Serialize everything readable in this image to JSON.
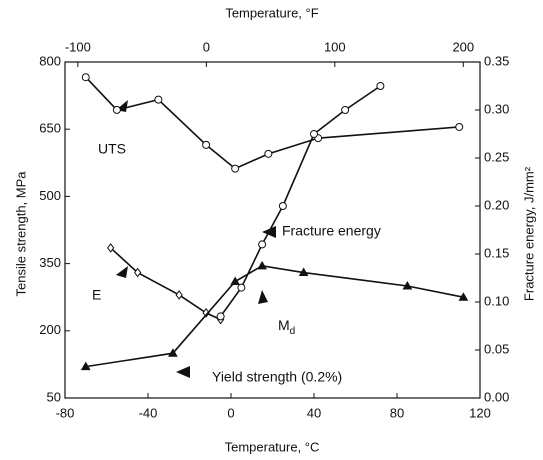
{
  "chart_data": {
    "type": "line",
    "xlabel": "Temperature, °C",
    "x2label": "Temperature, °F",
    "ylabel": "Tensile strength, MPa",
    "y2label": "Fracture energy, J/mm²",
    "xlim": [
      -80,
      120
    ],
    "xticks": [
      -80,
      -40,
      0,
      40,
      80,
      120
    ],
    "x2lim": [
      -110,
      213
    ],
    "x2ticks": [
      -100,
      0,
      100,
      200
    ],
    "ylim": [
      50,
      800
    ],
    "yticks": [
      50,
      200,
      350,
      500,
      650,
      800
    ],
    "y2lim": [
      0,
      0.35
    ],
    "y2ticks": [
      {
        "value": 0,
        "label": "0.00"
      },
      {
        "value": 0.05,
        "label": "0.05"
      },
      {
        "value": 0.1,
        "label": "0.10"
      },
      {
        "value": 0.15,
        "label": "0.15"
      },
      {
        "value": 0.2,
        "label": "0.20"
      },
      {
        "value": 0.25,
        "label": "0.25"
      },
      {
        "value": 0.3,
        "label": "0.30"
      },
      {
        "value": 0.35,
        "label": "0.35"
      }
    ],
    "series": [
      {
        "name": "UTS",
        "color": "#111",
        "marker": "circle-open",
        "x": [
          -70,
          -55,
          -35,
          -12,
          2,
          18,
          42,
          110
        ],
        "values": [
          766,
          693,
          716,
          615,
          562,
          595,
          630,
          655
        ]
      },
      {
        "name": "E",
        "color": "#111",
        "marker": "diamond-open",
        "x": [
          -58,
          -45,
          -25,
          -12,
          -5
        ],
        "values": [
          385,
          330,
          280,
          240,
          225
        ]
      },
      {
        "name": "Yield strength (0.2%)",
        "color": "#111",
        "marker": "triangle-filled",
        "x": [
          -70,
          -28,
          2,
          15,
          35,
          85,
          112
        ],
        "values": [
          120,
          150,
          310,
          345,
          330,
          300,
          275
        ]
      },
      {
        "name": "Fracture energy",
        "color": "#111",
        "marker": "circle-open",
        "axis": "y2",
        "x": [
          -5,
          5,
          15,
          25,
          40,
          55,
          72
        ],
        "values": [
          0.085,
          0.115,
          0.16,
          0.2,
          0.275,
          0.3,
          0.325
        ]
      }
    ],
    "annotations": [
      {
        "text": "M",
        "sub": "d"
      }
    ]
  }
}
